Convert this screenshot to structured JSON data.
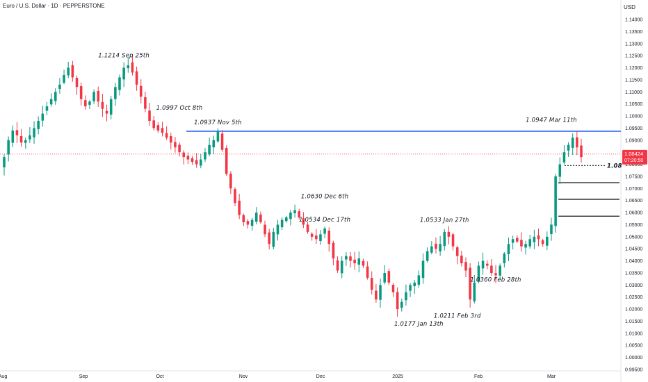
{
  "header": {
    "symbol_title": "Euro / U.S. Dollar · 1D · PEPPERSTONE",
    "currency": "USD"
  },
  "price_badge": {
    "price": "1.08424",
    "countdown": "07:20:50",
    "color": "#f23645"
  },
  "colors": {
    "up": "#089981",
    "down": "#f23645",
    "resistance": "#2962ff",
    "current_line": "#f23645"
  },
  "chart_data": {
    "type": "candlestick",
    "x_tick_labels": [
      "Aug",
      "Sep",
      "Oct",
      "Nov",
      "Dec",
      "2025",
      "Feb",
      "Mar"
    ],
    "y_ticks": [
      "1.14000",
      "1.13500",
      "1.13000",
      "1.12500",
      "1.12000",
      "1.11500",
      "1.11000",
      "1.10500",
      "1.10000",
      "1.09500",
      "1.09000",
      "1.08500",
      "1.08000",
      "1.07500",
      "1.07000",
      "1.06500",
      "1.06000",
      "1.05500",
      "1.05000",
      "1.04500",
      "1.04000",
      "1.03500",
      "1.03000",
      "1.02500",
      "1.02000",
      "1.01500",
      "1.01000",
      "1.00500",
      "1.00000",
      "0.99500"
    ],
    "ylim": [
      0.995,
      1.142
    ],
    "annotations": [
      {
        "text": "1.1214 Sep 25th",
        "value": 1.1214,
        "position": "above"
      },
      {
        "text": "1.0997 Oct 8th",
        "value": 1.0997,
        "position": "above"
      },
      {
        "text": "1.0937 Nov 5th",
        "value": 1.0937,
        "position": "above"
      },
      {
        "text": "1.0630 Dec 6th",
        "value": 1.063,
        "position": "above"
      },
      {
        "text": "1.0534 Dec 17th",
        "value": 1.0534,
        "position": "above"
      },
      {
        "text": "1.0177 Jan 13th",
        "value": 1.0177,
        "position": "below"
      },
      {
        "text": "1.0533 Jan 27th",
        "value": 1.0533,
        "position": "above"
      },
      {
        "text": "1.0211 Feb 3rd",
        "value": 1.0211,
        "position": "below"
      },
      {
        "text": "1.0360 Feb 28th",
        "value": 1.036,
        "position": "below"
      },
      {
        "text": "1.0947 Mar 11th",
        "value": 1.0947,
        "position": "above"
      }
    ],
    "resistance_level": 1.0937,
    "current_price": 1.08424,
    "dotted_level": {
      "value": 1.0795,
      "label": "1.08"
    },
    "support_levels": [
      1.0724,
      1.0655,
      1.0585
    ],
    "close_path": [
      1.083,
      1.09,
      1.094,
      1.092,
      1.089,
      1.09,
      1.092,
      1.095,
      1.098,
      1.101,
      1.104,
      1.107,
      1.11,
      1.113,
      1.117,
      1.12,
      1.116,
      1.112,
      1.107,
      1.104,
      1.106,
      1.11,
      1.106,
      1.103,
      1.101,
      1.107,
      1.112,
      1.116,
      1.12,
      1.121,
      1.118,
      1.113,
      1.108,
      1.103,
      1.098,
      1.095,
      1.094,
      1.093,
      1.091,
      1.089,
      1.087,
      1.085,
      1.083,
      1.082,
      1.081,
      1.08,
      1.082,
      1.085,
      1.088,
      1.09,
      1.0937,
      1.086,
      1.076,
      1.07,
      1.064,
      1.059,
      1.056,
      1.055,
      1.057,
      1.06,
      1.056,
      1.051,
      1.047,
      1.052,
      1.055,
      1.057,
      1.058,
      1.06,
      1.061,
      1.058,
      1.055,
      1.052,
      1.05,
      1.049,
      1.051,
      1.0534,
      1.047,
      1.041,
      1.036,
      1.04,
      1.042,
      1.04,
      1.039,
      1.041,
      1.038,
      1.033,
      1.028,
      1.024,
      1.03,
      1.035,
      1.031,
      1.027,
      1.02,
      1.023,
      1.027,
      1.03,
      1.031,
      1.034,
      1.04,
      1.044,
      1.046,
      1.045,
      1.047,
      1.052,
      1.05,
      1.046,
      1.042,
      1.039,
      1.036,
      1.024,
      1.031,
      1.038,
      1.04,
      1.038,
      1.035,
      1.034,
      1.038,
      1.043,
      1.047,
      1.049,
      1.048,
      1.046,
      1.047,
      1.049,
      1.05,
      1.049,
      1.047,
      1.05,
      1.055,
      1.075,
      1.08,
      1.085,
      1.088,
      1.091,
      1.087,
      1.083
    ],
    "grid": false,
    "legend": "none"
  }
}
